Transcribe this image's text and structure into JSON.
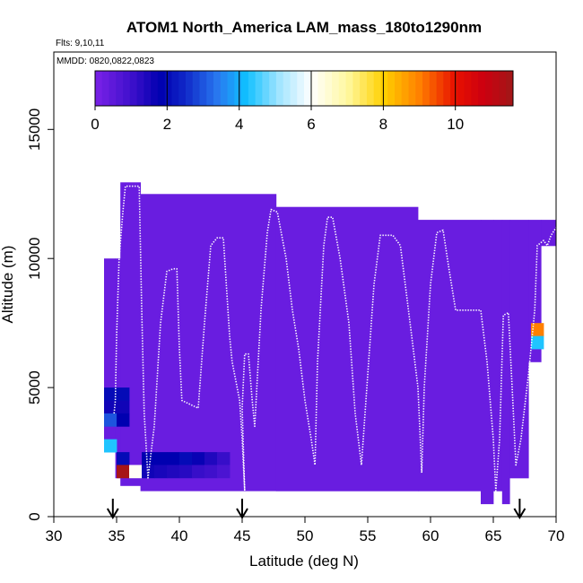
{
  "chart_data": {
    "type": "heatmap",
    "title": "ATOM1 North_America LAM_mass_180to1290nm",
    "flights_note": "Flts: 9,10,11",
    "dates_note": "MMDD: 0820,0822,0823",
    "xlabel": "Latitude (deg N)",
    "ylabel": "Altitude (m)",
    "xlim": [
      30,
      70
    ],
    "ylim": [
      0,
      18000
    ],
    "xticks": [
      30,
      35,
      40,
      45,
      50,
      55,
      60,
      65,
      70
    ],
    "yticks": [
      0,
      5000,
      10000,
      15000
    ],
    "grid": false,
    "colorbar": {
      "range": [
        0,
        11.6
      ],
      "ticks": [
        0,
        2,
        4,
        6,
        8,
        10
      ],
      "stops": [
        {
          "v": 0,
          "c": "#7b22e8"
        },
        {
          "v": 1.0,
          "c": "#3f10cc"
        },
        {
          "v": 1.8,
          "c": "#0000b0"
        },
        {
          "v": 2.5,
          "c": "#1028c8"
        },
        {
          "v": 3.4,
          "c": "#2878f0"
        },
        {
          "v": 4.2,
          "c": "#10c0ff"
        },
        {
          "v": 5.1,
          "c": "#a0e4ff"
        },
        {
          "v": 6.0,
          "c": "#ffffff"
        },
        {
          "v": 7.0,
          "c": "#fff8a0"
        },
        {
          "v": 8.0,
          "c": "#ffd000"
        },
        {
          "v": 9.0,
          "c": "#ff8000"
        },
        {
          "v": 10.0,
          "c": "#e81000"
        },
        {
          "v": 10.8,
          "c": "#cc0010"
        },
        {
          "v": 11.6,
          "c": "#a01818"
        }
      ]
    },
    "background_cells": [
      {
        "x": [
          34.0,
          34.9
        ],
        "y": [
          3000,
          10000
        ],
        "v": 0.3
      },
      {
        "x": [
          34.9,
          35.3
        ],
        "y": [
          1500,
          10000
        ],
        "v": 0.3
      },
      {
        "x": [
          35.3,
          36.9
        ],
        "y": [
          1200,
          12950
        ],
        "v": 0.3
      },
      {
        "x": [
          36.9,
          47.7
        ],
        "y": [
          1000,
          12500
        ],
        "v": 0.3
      },
      {
        "x": [
          47.7,
          59.0
        ],
        "y": [
          1000,
          12000
        ],
        "v": 0.3
      },
      {
        "x": [
          59.0,
          64.0
        ],
        "y": [
          1000,
          11500
        ],
        "v": 0.3
      },
      {
        "x": [
          64.0,
          65.0
        ],
        "y": [
          500,
          11500
        ],
        "v": 0.3
      },
      {
        "x": [
          65.0,
          65.7
        ],
        "y": [
          1000,
          11500
        ],
        "v": 0.3
      },
      {
        "x": [
          65.7,
          66.3
        ],
        "y": [
          500,
          11500
        ],
        "v": 0.3
      },
      {
        "x": [
          66.3,
          67.8
        ],
        "y": [
          1500,
          11500
        ],
        "v": 0.3
      },
      {
        "x": [
          67.8,
          68.8
        ],
        "y": [
          6000,
          11500
        ],
        "v": 0.3
      },
      {
        "x": [
          68.8,
          70.0
        ],
        "y": [
          10500,
          11500
        ],
        "v": 0.3
      }
    ],
    "highlight_cells": [
      {
        "x": [
          34.0,
          35.0
        ],
        "y": [
          4500,
          5000
        ],
        "v": 2.0
      },
      {
        "x": [
          35.0,
          36.0
        ],
        "y": [
          4500,
          5000
        ],
        "v": 2.0
      },
      {
        "x": [
          34.0,
          35.0
        ],
        "y": [
          4000,
          4500
        ],
        "v": 1.6
      },
      {
        "x": [
          35.0,
          36.0
        ],
        "y": [
          4000,
          4500
        ],
        "v": 1.6
      },
      {
        "x": [
          34.0,
          35.0
        ],
        "y": [
          3500,
          4000
        ],
        "v": 3.0
      },
      {
        "x": [
          35.0,
          36.0
        ],
        "y": [
          3500,
          4000
        ],
        "v": 1.8
      },
      {
        "x": [
          34.0,
          35.0
        ],
        "y": [
          2500,
          3000
        ],
        "v": 4.3
      },
      {
        "x": [
          35.0,
          36.0
        ],
        "y": [
          2000,
          2500
        ],
        "v": 2.0
      },
      {
        "x": [
          35.0,
          36.0
        ],
        "y": [
          1500,
          2000
        ],
        "v": 11.5
      },
      {
        "x": [
          36.0,
          37.0
        ],
        "y": [
          1500,
          2000
        ],
        "v": 6.1
      },
      {
        "x": [
          37.0,
          38.0
        ],
        "y": [
          2000,
          2500
        ],
        "v": 1.8
      },
      {
        "x": [
          37.0,
          38.0
        ],
        "y": [
          1500,
          2000
        ],
        "v": 1.6
      },
      {
        "x": [
          38.0,
          39.0
        ],
        "y": [
          2000,
          2500
        ],
        "v": 1.8
      },
      {
        "x": [
          38.0,
          39.0
        ],
        "y": [
          1500,
          2000
        ],
        "v": 1.5
      },
      {
        "x": [
          39.0,
          40.0
        ],
        "y": [
          2000,
          2500
        ],
        "v": 1.8
      },
      {
        "x": [
          39.0,
          40.0
        ],
        "y": [
          1500,
          2000
        ],
        "v": 1.4
      },
      {
        "x": [
          40.0,
          41.0
        ],
        "y": [
          2000,
          2500
        ],
        "v": 2.0
      },
      {
        "x": [
          40.0,
          41.0
        ],
        "y": [
          1500,
          2000
        ],
        "v": 1.3
      },
      {
        "x": [
          41.0,
          42.0
        ],
        "y": [
          2000,
          2500
        ],
        "v": 1.7
      },
      {
        "x": [
          41.0,
          42.0
        ],
        "y": [
          1500,
          2000
        ],
        "v": 1.1
      },
      {
        "x": [
          42.0,
          43.0
        ],
        "y": [
          2000,
          2500
        ],
        "v": 1.4
      },
      {
        "x": [
          42.0,
          43.0
        ],
        "y": [
          1500,
          2000
        ],
        "v": 1.0
      },
      {
        "x": [
          43.0,
          44.0
        ],
        "y": [
          2000,
          2500
        ],
        "v": 1.1
      },
      {
        "x": [
          43.0,
          44.0
        ],
        "y": [
          1500,
          2000
        ],
        "v": 0.8
      },
      {
        "x": [
          68.0,
          69.0
        ],
        "y": [
          7000,
          7500
        ],
        "v": 9.0
      },
      {
        "x": [
          68.0,
          69.0
        ],
        "y": [
          6500,
          7000
        ],
        "v": 4.3
      }
    ],
    "flight_track": [
      [
        34.8,
        4000
      ],
      [
        34.9,
        4500
      ],
      [
        35.0,
        7000
      ],
      [
        35.2,
        10000
      ],
      [
        35.5,
        11800
      ],
      [
        35.7,
        12800
      ],
      [
        36.2,
        12800
      ],
      [
        36.8,
        12800
      ],
      [
        37.0,
        8000
      ],
      [
        37.2,
        4000
      ],
      [
        37.5,
        1500
      ],
      [
        38.0,
        3500
      ],
      [
        38.5,
        7500
      ],
      [
        39.0,
        9500
      ],
      [
        39.5,
        9600
      ],
      [
        39.8,
        9600
      ],
      [
        40.0,
        6500
      ],
      [
        40.2,
        4500
      ],
      [
        41.5,
        4200
      ],
      [
        42.0,
        7500
      ],
      [
        42.5,
        10500
      ],
      [
        43.0,
        10800
      ],
      [
        43.5,
        10800
      ],
      [
        44.0,
        7000
      ],
      [
        44.2,
        6000
      ],
      [
        44.8,
        4500
      ],
      [
        45.0,
        3000
      ],
      [
        45.2,
        1000
      ],
      [
        45.0,
        4200
      ],
      [
        45.2,
        6300
      ],
      [
        45.5,
        6300
      ],
      [
        45.8,
        4500
      ],
      [
        46.0,
        3500
      ],
      [
        46.5,
        8000
      ],
      [
        47.0,
        11000
      ],
      [
        47.3,
        11900
      ],
      [
        47.8,
        11800
      ],
      [
        48.5,
        10000
      ],
      [
        49.0,
        8000
      ],
      [
        49.5,
        6500
      ],
      [
        50.0,
        4500
      ],
      [
        50.5,
        3000
      ],
      [
        50.8,
        2000
      ],
      [
        51.0,
        6000
      ],
      [
        51.5,
        10500
      ],
      [
        51.8,
        11600
      ],
      [
        52.2,
        11600
      ],
      [
        52.8,
        10000
      ],
      [
        53.5,
        7500
      ],
      [
        54.0,
        4000
      ],
      [
        54.5,
        2000
      ],
      [
        55.0,
        5500
      ],
      [
        55.5,
        9000
      ],
      [
        56.0,
        10900
      ],
      [
        57.0,
        10900
      ],
      [
        57.6,
        10500
      ],
      [
        58.5,
        7000
      ],
      [
        59.0,
        5000
      ],
      [
        59.3,
        1700
      ],
      [
        59.5,
        5000
      ],
      [
        60.0,
        9000
      ],
      [
        60.5,
        11000
      ],
      [
        61.0,
        11100
      ],
      [
        61.5,
        9500
      ],
      [
        62.0,
        8000
      ],
      [
        63.0,
        8000
      ],
      [
        64.0,
        8000
      ],
      [
        64.5,
        6000
      ],
      [
        65.0,
        3000
      ],
      [
        65.2,
        1000
      ],
      [
        65.5,
        3000
      ],
      [
        65.8,
        7800
      ],
      [
        66.2,
        7900
      ],
      [
        66.5,
        5000
      ],
      [
        66.8,
        2000
      ],
      [
        67.2,
        3000
      ],
      [
        67.8,
        5500
      ],
      [
        68.3,
        8000
      ],
      [
        68.5,
        10500
      ],
      [
        69.0,
        10700
      ],
      [
        69.3,
        10500
      ],
      [
        69.6,
        10900
      ],
      [
        70.0,
        11200
      ]
    ],
    "arrows": [
      34.7,
      45.0,
      67.1
    ]
  }
}
